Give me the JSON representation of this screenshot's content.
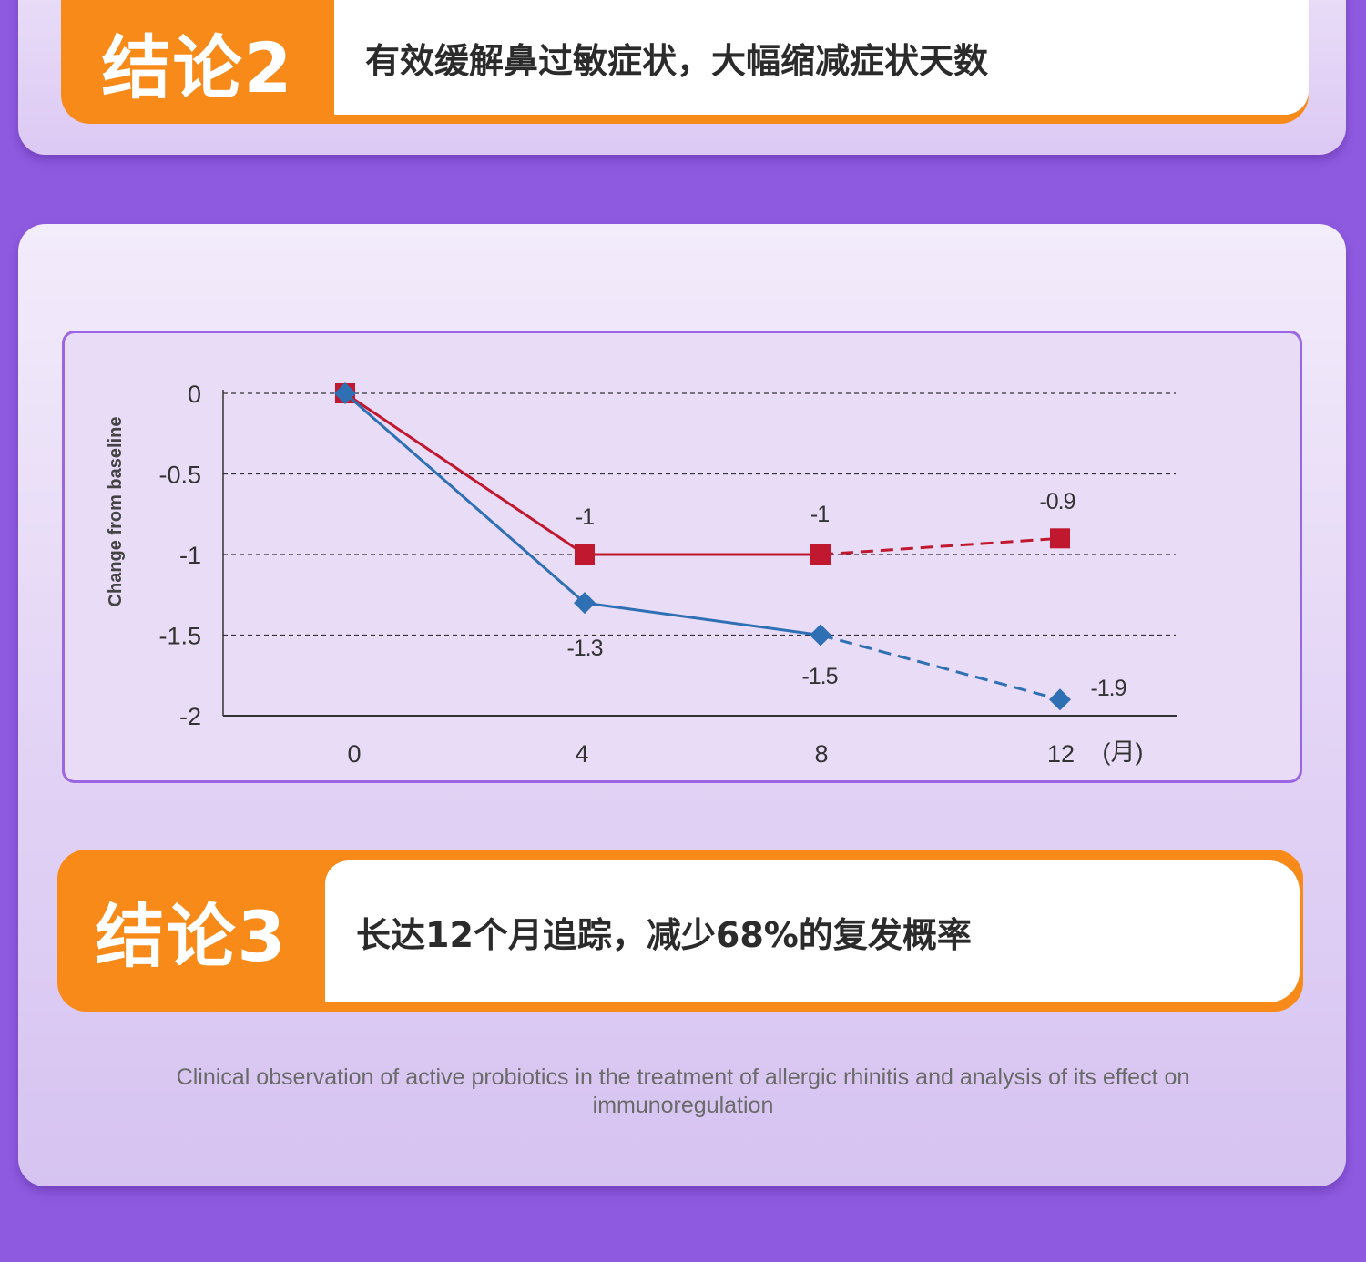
{
  "conclusion2": {
    "tag": "结论2",
    "text": "有效缓解鼻过敏症状，大幅缩减症状天数"
  },
  "conclusion3": {
    "tag": "结论3",
    "text": "长达12个月追踪，减少68%的复发概率"
  },
  "citation": "Clinical observation of active probiotics in the treatment of allergic rhinitis and analysis of its effect on immunoregulation",
  "colors": {
    "page_background": "#8e5ae0",
    "accent_orange": "#f88a1a",
    "chart_border": "#9b66e3",
    "series_red": "#c0182e",
    "series_blue": "#2f6fb3"
  },
  "chart_data": {
    "type": "line",
    "title": "",
    "xlabel": "",
    "x_unit_label": "(月)",
    "ylabel": "Change from baseline",
    "x": [
      0,
      4,
      8,
      12
    ],
    "x_tick_labels": [
      "0",
      "4",
      "8",
      "12"
    ],
    "ylim": [
      -2,
      0
    ],
    "y_ticks": [
      0,
      -0.5,
      -1,
      -1.5,
      -2
    ],
    "y_tick_labels": [
      "0",
      "-0.5",
      "-1",
      "-1.5",
      "-2"
    ],
    "grid": true,
    "series": [
      {
        "marker": "square",
        "color": "#c0182e",
        "values": [
          0,
          -1,
          -1,
          -0.9
        ],
        "data_labels": [
          "",
          "-1",
          "-1",
          "-0.9"
        ],
        "dashed_from_index": 2
      },
      {
        "marker": "diamond",
        "color": "#2f6fb3",
        "values": [
          0,
          -1.3,
          -1.5,
          -1.9
        ],
        "data_labels": [
          "",
          "-1.3",
          "-1.5",
          "-1.9"
        ],
        "dashed_from_index": 2
      }
    ]
  }
}
